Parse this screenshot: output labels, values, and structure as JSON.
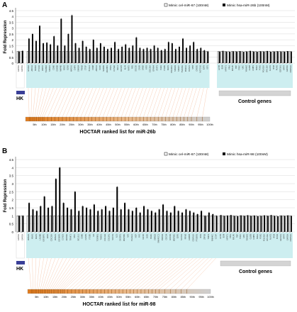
{
  "chart_data": [
    {
      "type": "bar",
      "panel_label": "A",
      "ylabel": "Fold Repression",
      "ylim": [
        0,
        4.5
      ],
      "yticks": [
        "0",
        "0.5",
        "1",
        "1.5",
        "2",
        "2.5",
        "3",
        "3.5",
        "4",
        "4.5"
      ],
      "legend": [
        "Mimic cel-miR-67 (100nM)",
        "Mimic hsa-miR-26b (100nM)"
      ],
      "series": [
        {
          "name": "Mimic cel-miR-67 (100nM)",
          "color": "#ffffff"
        },
        {
          "name": "Mimic hsa-miR-26b (100nM)",
          "color": "#000000"
        }
      ],
      "hk_values": [
        1.0,
        1.05
      ],
      "target_values": [
        2.1,
        2.5,
        1.9,
        3.2,
        1.7,
        1.75,
        1.6,
        2.3,
        1.5,
        3.8,
        1.5,
        2.5,
        4.1,
        1.7,
        1.3,
        1.9,
        1.4,
        1.2,
        2.0,
        1.3,
        1.7,
        1.4,
        1.2,
        1.3,
        1.8,
        1.2,
        1.4,
        1.6,
        1.3,
        1.5,
        2.2,
        1.3,
        1.2,
        1.3,
        1.2,
        1.5,
        1.3,
        1.1,
        1.2,
        1.8,
        1.7,
        1.2,
        1.4,
        2.1,
        1.3,
        1.5,
        1.8,
        1.2,
        1.3,
        1.1,
        1.0
      ],
      "control_values": [
        1.0,
        1.05,
        1.0,
        0.98,
        1.02,
        1.0,
        1.03,
        0.97,
        1.0,
        1.05,
        1.0,
        0.98,
        1.02,
        1.0,
        1.04,
        0.98,
        1.0,
        1.02,
        1.0,
        0.99,
        1.03,
        1.0
      ],
      "hk_genes": [
        "GAPDH",
        "GAPDH"
      ],
      "target_genes": [
        "EPHA2",
        "ABCA1",
        "NR2F2",
        "PTGS2",
        "USP15",
        "TGFBR2",
        "SMAD1",
        "CDK6",
        "GSK3B",
        "MAPK6",
        "NRAS",
        "EZH2",
        "HMGA1",
        "CHFR",
        "SMAD4",
        "TRIM2",
        "CTGF",
        "PLAG1",
        "CDK8",
        "ABCA1",
        "SOX5",
        "NEDD9",
        "ADAM19",
        "PTEN",
        "CCNE2",
        "MCL1",
        "DUSP4",
        "KLF4",
        "NFAT5",
        "RB1",
        "SOCS5",
        "CASK",
        "GRB2",
        "ATF2",
        "CDC25A",
        "EPHA4",
        "STAT3",
        "PAK1",
        "ITGB1",
        "KRAS",
        "PDGFRA",
        "SMAD3",
        "SMAD7",
        "TNRC6A",
        "PIK3CA",
        "RUNX1",
        "MYB",
        "CREB1",
        "NOTCH2",
        "E2F3",
        "IGF1"
      ],
      "control_genes": [
        "ACTB",
        "B2M",
        "HPRT1",
        "PPIA",
        "RPLP0",
        "TBP",
        "TFRC",
        "UBC",
        "YWHAZ",
        "GUSB",
        "HMBS",
        "SDHA",
        "PGK1",
        "POLR2A",
        "RPL13A",
        "ALAS1",
        "IPO8",
        "PUM1",
        "EEF1A1",
        "HPRT",
        "GAPDH",
        "CDKN1A"
      ],
      "hk_label": "HK",
      "control_label": "Control genes",
      "ranked_label": "HOCTAR ranked list for miR-26b",
      "ranked_positions": [
        2,
        3,
        4,
        5,
        6,
        7,
        8,
        9,
        10,
        12,
        14,
        16,
        18,
        20,
        22,
        24,
        26,
        28,
        30,
        32,
        34,
        36,
        38,
        40,
        42,
        44,
        46,
        48,
        50,
        52,
        54,
        56,
        58,
        60,
        62,
        64,
        66,
        68,
        70,
        72,
        74,
        76,
        78,
        80,
        82,
        84,
        86,
        88,
        90,
        93,
        96
      ],
      "ticks": [
        "5th",
        "10th",
        "15th",
        "20th",
        "25th",
        "30th",
        "35th",
        "40th",
        "45th",
        "50th",
        "55th",
        "60th",
        "65th",
        "70th",
        "75th",
        "80th",
        "85th",
        "90th",
        "95th",
        "100th"
      ]
    },
    {
      "type": "bar",
      "panel_label": "B",
      "ylabel": "Fold Repression",
      "ylim": [
        0,
        4.5
      ],
      "yticks": [
        "0",
        "0.5",
        "1",
        "1.5",
        "2",
        "2.5",
        "3",
        "3.5",
        "4",
        "4.5"
      ],
      "legend": [
        "Mimic cel-miR-67 (100nM)",
        "Mimic hsa-miR-98 (100nM)"
      ],
      "series": [
        {
          "name": "Mimic cel-miR-67 (100nM)",
          "color": "#ffffff"
        },
        {
          "name": "Mimic hsa-miR-98 (100nM)",
          "color": "#000000"
        }
      ],
      "hk_values": [
        1.0,
        1.0
      ],
      "target_values": [
        1.8,
        1.4,
        1.3,
        1.6,
        2.2,
        1.5,
        1.6,
        3.3,
        4.0,
        1.8,
        1.5,
        1.4,
        2.5,
        1.3,
        1.6,
        1.5,
        1.4,
        1.7,
        1.3,
        1.4,
        1.6,
        1.3,
        1.5,
        2.8,
        1.4,
        1.8,
        1.4,
        1.3,
        1.5,
        1.2,
        1.6,
        1.4,
        1.3,
        1.2,
        1.4,
        1.7,
        1.3,
        1.2,
        1.6,
        1.3,
        1.2,
        1.4,
        1.3,
        1.2,
        1.1,
        1.3,
        1.0,
        1.2,
        1.1,
        1.0
      ],
      "control_values": [
        1.05,
        1.0,
        1.02,
        1.05,
        1.0,
        0.98,
        1.03,
        1.0,
        1.04,
        1.0,
        1.02,
        0.98,
        1.0,
        1.03,
        1.0,
        1.05,
        1.0,
        0.97,
        1.02,
        1.0,
        1.03,
        1.0
      ],
      "hk_genes": [
        "GAPDH",
        "GAPDH"
      ],
      "target_genes": [
        "HMGA2",
        "NRAS",
        "KRAS",
        "LIN28B",
        "IGF2BP1",
        "E2F2",
        "CDC25A",
        "HMGA1",
        "IGF2BP2",
        "CCND1",
        "ARID3A",
        "TRIM71",
        "MYC",
        "BCL2L1",
        "CDK6",
        "CASP3",
        "ITGB3",
        "IL6",
        "TGFBR1",
        "THBS1",
        "COL1A2",
        "COL3A1",
        "SOCS1",
        "IL13",
        "DICER1",
        "MAP4K3",
        "NF2",
        "PLAGL2",
        "NGF",
        "FAS",
        "IGF1R",
        "INSR",
        "BAK1",
        "SMAD2",
        "SMARCC1",
        "PRDM1",
        "CDC34",
        "HOXA9",
        "MAP3K1",
        "E2F5",
        "NCOA1",
        "RRM2",
        "AURKB",
        "CDKN1A",
        "PTGER3",
        "IRS2",
        "ZFP36",
        "TMPO",
        "RAB40C",
        "CCNF"
      ],
      "control_genes": [
        "ACTB",
        "B2M",
        "HPRT1",
        "PPIA",
        "RPLP0",
        "TBP",
        "TFRC",
        "UBC",
        "YWHAZ",
        "GUSB",
        "HMBS",
        "SDHA",
        "PGK1",
        "POLR2A",
        "RPL13A",
        "ALAS1",
        "IPO8",
        "PUM1",
        "EEF1A1",
        "HPRT",
        "GAPDH",
        "CDKN1A"
      ],
      "hk_label": "HK",
      "control_label": "Control genes",
      "ranked_label": "HOCTAR ranked list for miR-98",
      "ranked_positions": [
        2,
        3,
        4,
        5,
        6,
        7,
        8,
        9,
        10,
        11,
        12,
        13,
        14,
        15,
        16,
        17,
        18,
        19,
        20,
        22,
        24,
        26,
        28,
        30,
        32,
        34,
        36,
        38,
        40,
        42,
        44,
        46,
        48,
        50,
        52,
        54,
        56,
        58,
        60,
        62,
        64,
        66,
        68,
        70,
        72,
        75,
        78,
        81,
        84,
        87
      ],
      "ticks": [
        "5th",
        "10th",
        "15th",
        "20th",
        "25th",
        "30th",
        "35th",
        "40th",
        "45th",
        "50th",
        "55th",
        "60th",
        "65th",
        "70th",
        "75th",
        "80th",
        "85th",
        "90th",
        "95th",
        "100th"
      ]
    }
  ],
  "colors": {
    "gene_label_bg": "#cdeef0",
    "hk_box": "#3a3f97",
    "control_box": "#d4d4d4",
    "ranked_bar_start": "#e07a1c",
    "ranked_bar_end": "#cfcfcf",
    "connector": "#f4b996"
  }
}
